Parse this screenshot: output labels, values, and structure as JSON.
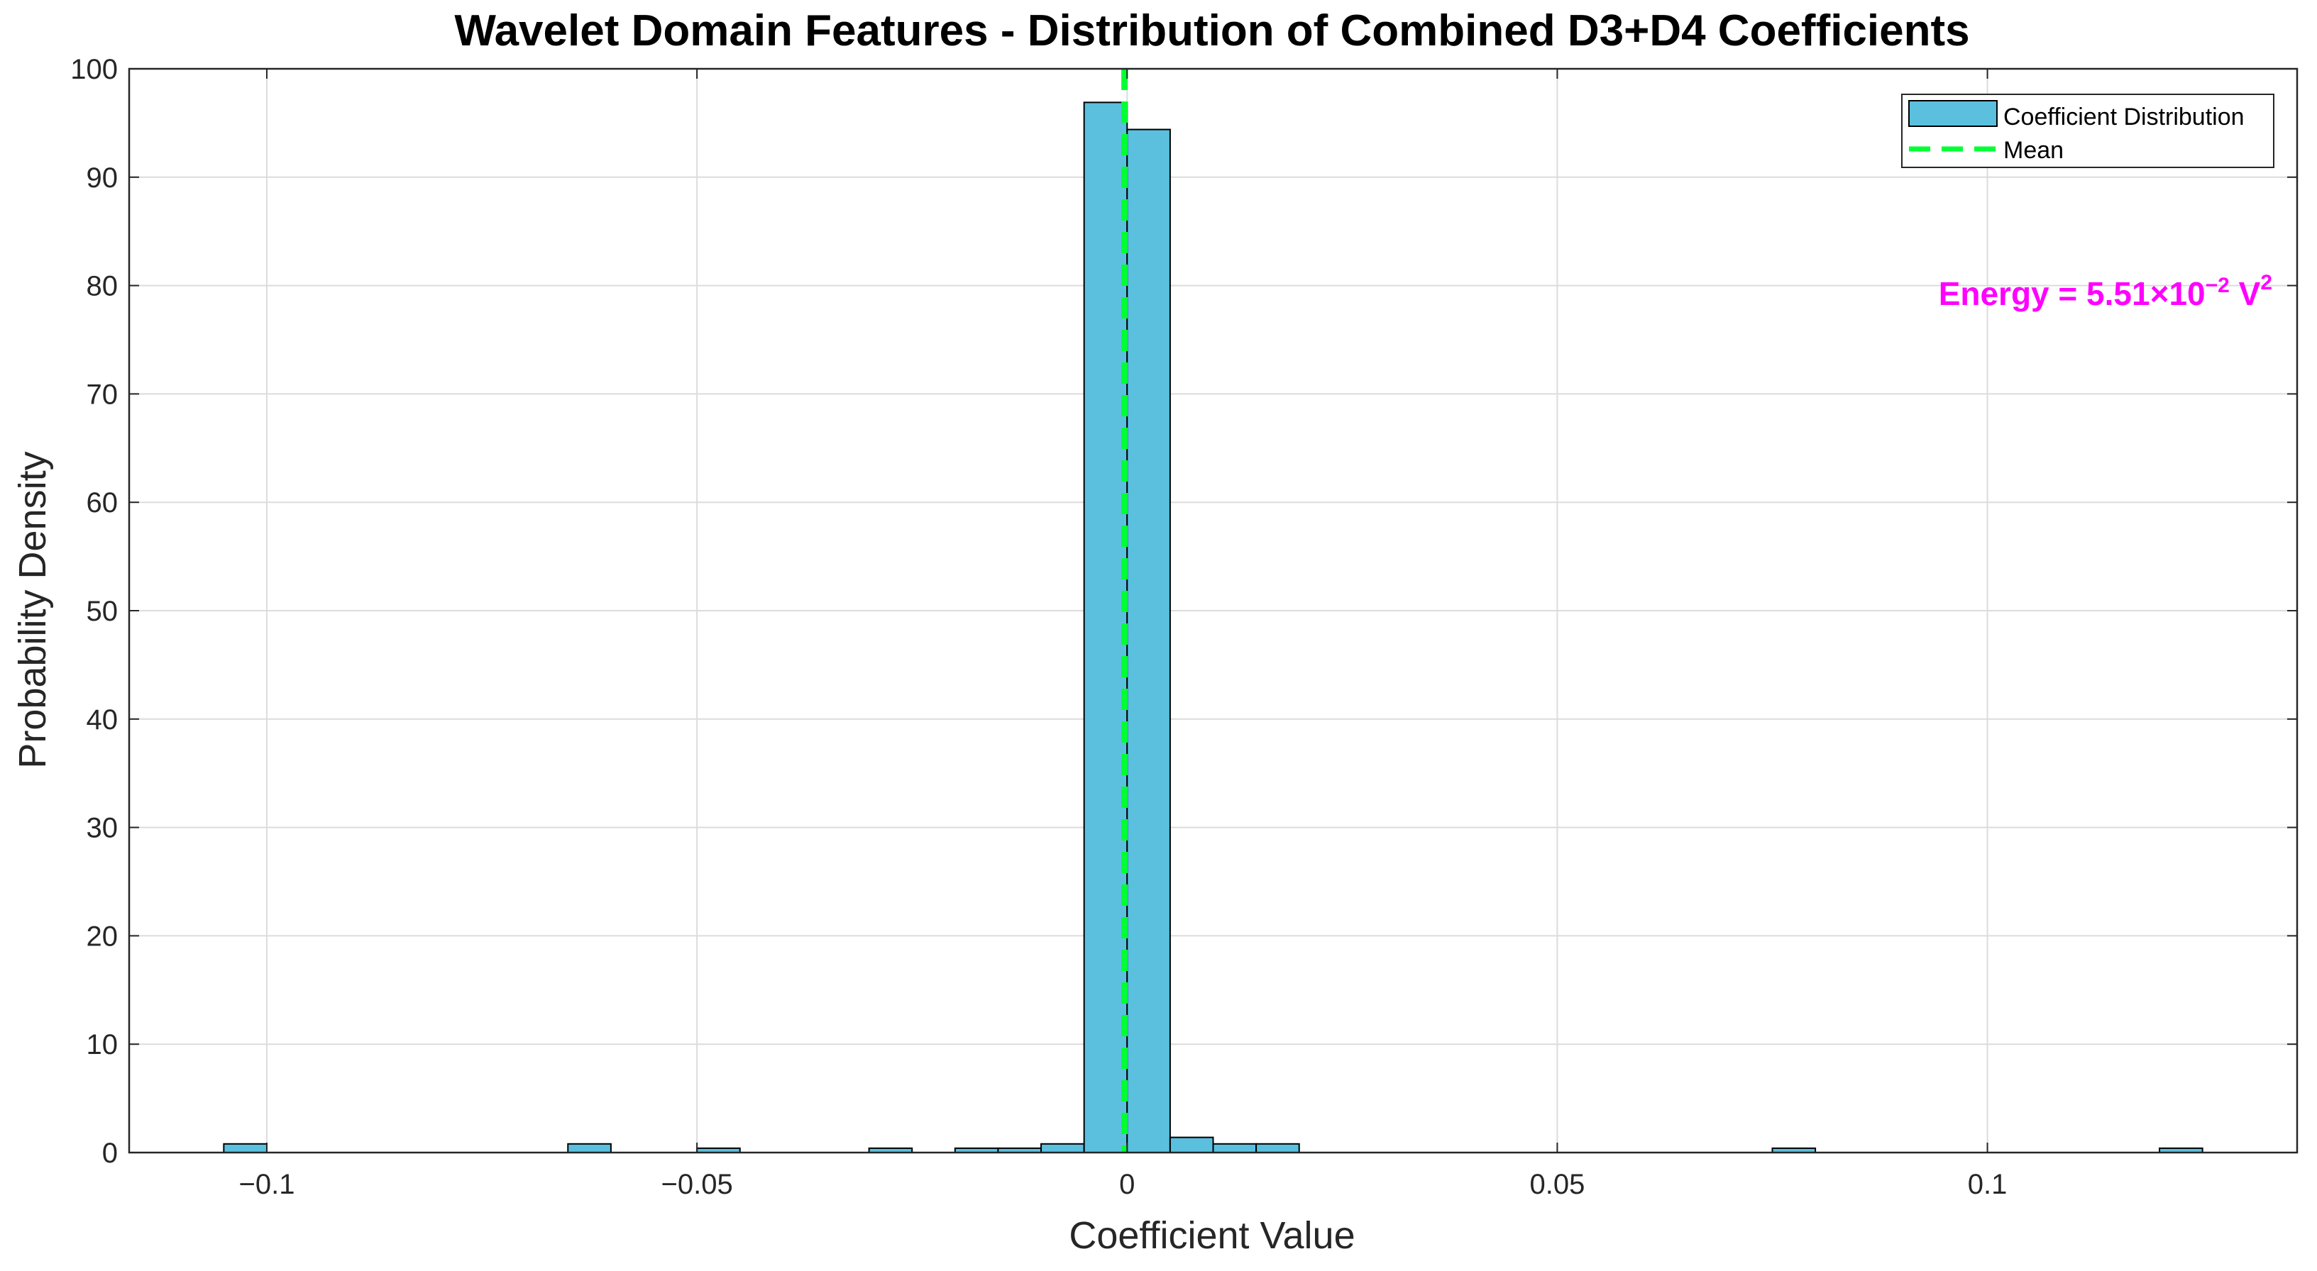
{
  "chart_data": {
    "type": "bar",
    "title": "Wavelet Domain Features - Distribution of Combined D3+D4 Coefficients",
    "xlabel": "Coefficient Value",
    "ylabel": "Probability Density",
    "xlim": [
      -0.116,
      0.136
    ],
    "ylim": [
      0,
      100
    ],
    "x_ticks": [
      -0.1,
      -0.05,
      0,
      0.05,
      0.1
    ],
    "x_tick_labels": [
      "−0.1",
      "−0.05",
      "0",
      "0.05",
      "0.1"
    ],
    "y_ticks": [
      0,
      10,
      20,
      30,
      40,
      50,
      60,
      70,
      80,
      90,
      100
    ],
    "y_tick_labels": [
      "0",
      "10",
      "20",
      "30",
      "40",
      "50",
      "60",
      "70",
      "80",
      "90",
      "100"
    ],
    "grid": true,
    "legend_position": "top-right",
    "bin_width": 0.005,
    "bins": [
      {
        "x0": -0.105,
        "x1": -0.1,
        "value": 0.8
      },
      {
        "x0": -0.065,
        "x1": -0.06,
        "value": 0.8
      },
      {
        "x0": -0.05,
        "x1": -0.045,
        "value": 0.4
      },
      {
        "x0": -0.03,
        "x1": -0.025,
        "value": 0.4
      },
      {
        "x0": -0.02,
        "x1": -0.015,
        "value": 0.4
      },
      {
        "x0": -0.015,
        "x1": -0.01,
        "value": 0.4
      },
      {
        "x0": -0.01,
        "x1": -0.005,
        "value": 0.8
      },
      {
        "x0": -0.005,
        "x1": 0.0,
        "value": 96.9
      },
      {
        "x0": 0.0,
        "x1": 0.005,
        "value": 94.4
      },
      {
        "x0": 0.005,
        "x1": 0.01,
        "value": 1.4
      },
      {
        "x0": 0.01,
        "x1": 0.015,
        "value": 0.8
      },
      {
        "x0": 0.015,
        "x1": 0.02,
        "value": 0.8
      },
      {
        "x0": 0.075,
        "x1": 0.08,
        "value": 0.4
      },
      {
        "x0": 0.12,
        "x1": 0.125,
        "value": 0.4
      }
    ],
    "mean": -0.0003,
    "series": [
      {
        "name": "Coefficient Distribution",
        "color": "#5BC0DE",
        "style": "bar"
      },
      {
        "name": "Mean",
        "color": "#00FF33",
        "style": "dashed-line"
      }
    ],
    "annotation": {
      "text_main": "Energy = 5.51×10",
      "text_exp": "−2",
      "text_unit": " V",
      "text_unit_exp": "2",
      "color": "#FF00FF"
    }
  }
}
